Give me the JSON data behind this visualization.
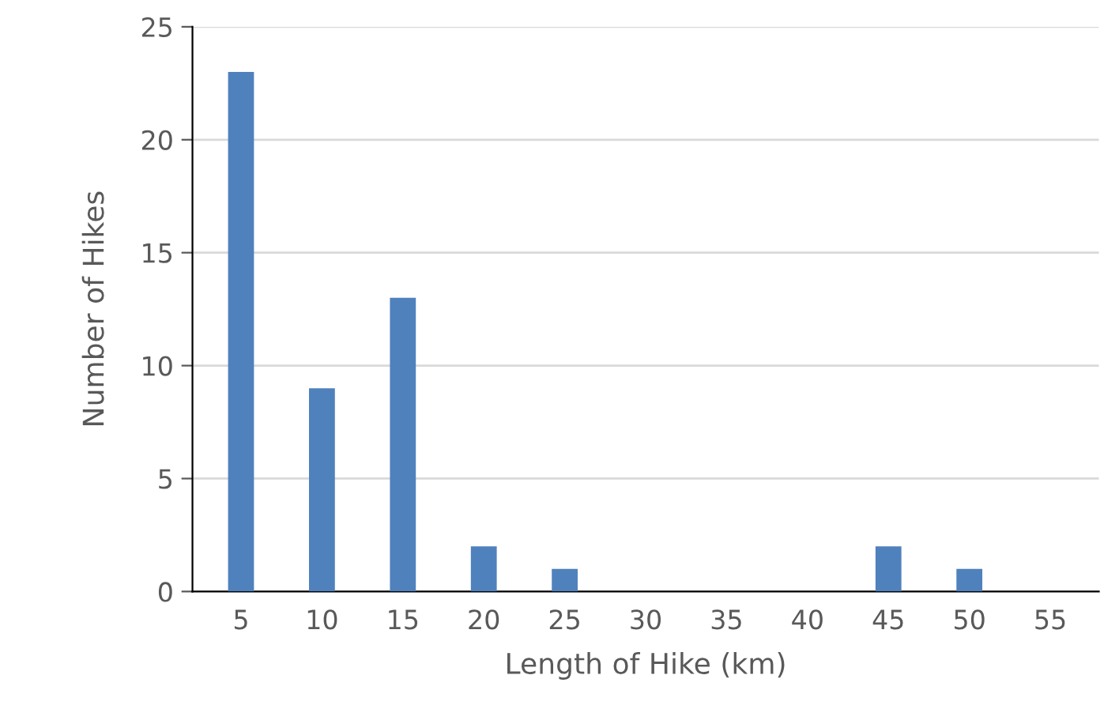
{
  "chart_data": {
    "type": "bar",
    "xlabel": "Length of Hike (km)",
    "ylabel": "Number of Hikes",
    "categories": [
      "5",
      "10",
      "15",
      "20",
      "25",
      "30",
      "35",
      "40",
      "45",
      "50",
      "55"
    ],
    "values": [
      23,
      9,
      13,
      2,
      1,
      0,
      0,
      0,
      2,
      1,
      0
    ],
    "color": "#4f81bd",
    "ylim": [
      0,
      25
    ],
    "yticks": [
      0,
      5,
      10,
      15,
      20,
      25
    ],
    "grid": "y"
  }
}
